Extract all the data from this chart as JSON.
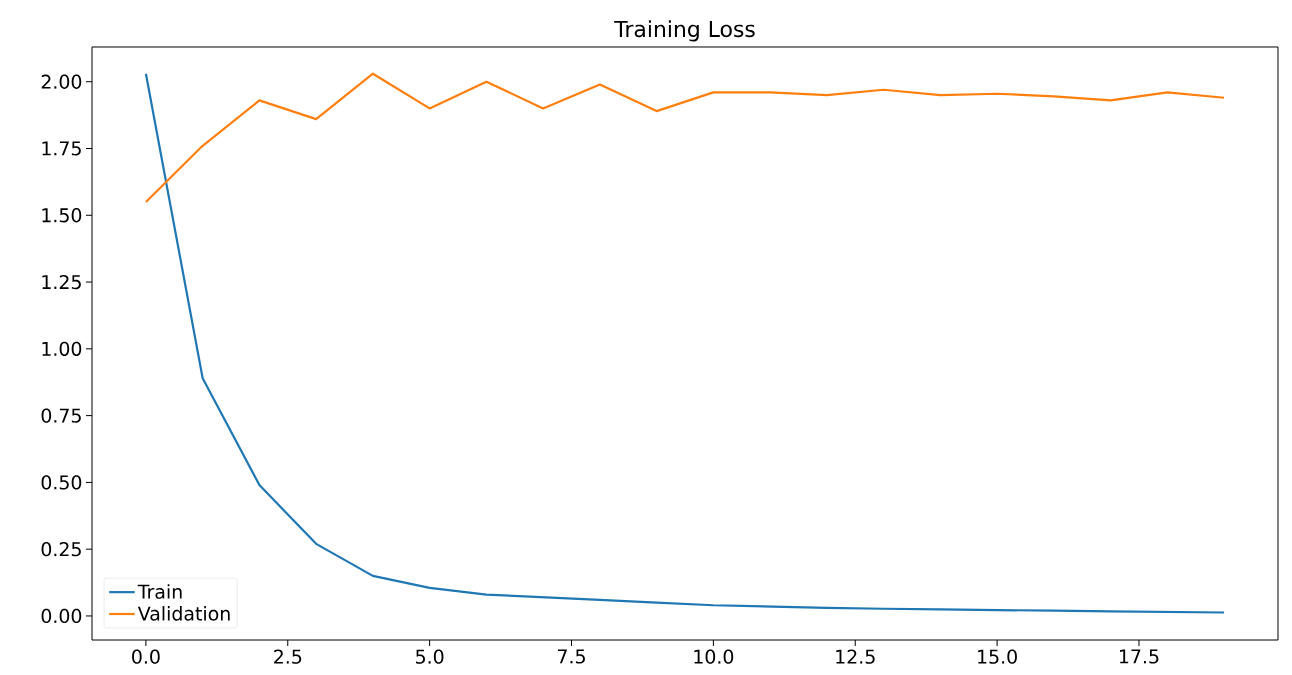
{
  "chart_data": {
    "type": "line",
    "title": "Training Loss",
    "x": [
      0,
      1,
      2,
      3,
      4,
      5,
      6,
      7,
      8,
      9,
      10,
      11,
      12,
      13,
      14,
      15,
      16,
      17,
      18,
      19
    ],
    "series": [
      {
        "name": "Train",
        "color": "#1f77b4",
        "values": [
          2.03,
          0.89,
          0.49,
          0.27,
          0.15,
          0.105,
          0.08,
          0.07,
          0.06,
          0.05,
          0.04,
          0.035,
          0.03,
          0.027,
          0.025,
          0.022,
          0.02,
          0.017,
          0.015,
          0.013
        ]
      },
      {
        "name": "Validation",
        "color": "#ff7f0e",
        "values": [
          1.55,
          1.76,
          1.93,
          1.86,
          2.03,
          1.9,
          2.0,
          1.9,
          1.99,
          1.89,
          1.96,
          1.96,
          1.95,
          1.97,
          1.95,
          1.955,
          1.945,
          1.93,
          1.96,
          1.94
        ]
      }
    ],
    "xlim": [
      -0.95,
      19.95
    ],
    "ylim": [
      -0.09,
      2.13
    ],
    "xticks": [
      {
        "value": 0,
        "label": "0.0"
      },
      {
        "value": 2.5,
        "label": "2.5"
      },
      {
        "value": 5,
        "label": "5.0"
      },
      {
        "value": 7.5,
        "label": "7.5"
      },
      {
        "value": 10,
        "label": "10.0"
      },
      {
        "value": 12.5,
        "label": "12.5"
      },
      {
        "value": 15,
        "label": "15.0"
      },
      {
        "value": 17.5,
        "label": "17.5"
      }
    ],
    "yticks": [
      {
        "value": 0,
        "label": "0.00"
      },
      {
        "value": 0.25,
        "label": "0.25"
      },
      {
        "value": 0.5,
        "label": "0.50"
      },
      {
        "value": 0.75,
        "label": "0.75"
      },
      {
        "value": 1,
        "label": "1.00"
      },
      {
        "value": 1.25,
        "label": "1.25"
      },
      {
        "value": 1.5,
        "label": "1.50"
      },
      {
        "value": 1.75,
        "label": "1.75"
      },
      {
        "value": 2,
        "label": "2.00"
      }
    ],
    "legend": "bottom left",
    "grid": false,
    "marker": "none",
    "line_style": "solid"
  }
}
